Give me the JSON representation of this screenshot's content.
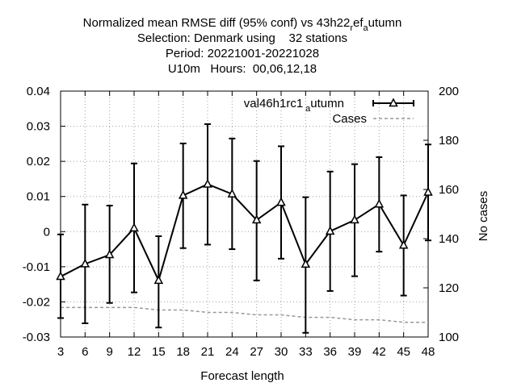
{
  "chart_data": {
    "type": "line",
    "title_lines": [
      "Normalized mean RMSE diff (95% conf) vs 43h22_ref_autumn",
      "Selection: Denmark using    32 stations",
      "Period: 20221001-20221028",
      "U10m   Hours:  00,06,12,18"
    ],
    "xlabel": "Forecast length",
    "ylabel_left": "",
    "ylabel_right": "No cases",
    "x": [
      3,
      6,
      9,
      12,
      15,
      18,
      21,
      24,
      27,
      30,
      33,
      36,
      39,
      42,
      45,
      48
    ],
    "xlim": [
      3,
      48
    ],
    "ylim": [
      -0.03,
      0.04
    ],
    "y2lim": [
      100,
      200
    ],
    "y_ticks": [
      "0.04",
      "0.03",
      "0.02",
      "0.01",
      "0",
      "-0.01",
      "-0.02",
      "-0.03"
    ],
    "y_tick_values": [
      0.04,
      0.03,
      0.02,
      0.01,
      0,
      -0.01,
      -0.02,
      -0.03
    ],
    "y2_ticks": [
      "200",
      "180",
      "160",
      "140",
      "120",
      "100"
    ],
    "y2_tick_values": [
      200,
      180,
      160,
      140,
      120,
      100
    ],
    "grid": true,
    "legend_position": "top-right",
    "series": [
      {
        "name": "val46h1rc1_autumn",
        "legend_main": "val46h1rc1",
        "legend_sub": "a",
        "legend_rest": "utumn",
        "values": [
          -0.0128,
          -0.0092,
          -0.0066,
          0.001,
          -0.0139,
          0.0103,
          0.0135,
          0.0107,
          0.0033,
          0.0083,
          -0.0093,
          0.0001,
          0.0033,
          0.0078,
          -0.0039,
          0.0112
        ],
        "err_low": [
          -0.0246,
          -0.0261,
          -0.0203,
          -0.0173,
          -0.0273,
          -0.0047,
          -0.0037,
          -0.005,
          -0.0139,
          -0.0077,
          -0.0288,
          -0.0169,
          -0.0127,
          -0.0057,
          -0.0182,
          -0.0025
        ],
        "err_high": [
          -0.0008,
          0.0077,
          0.0074,
          0.0194,
          -0.0013,
          0.0251,
          0.0306,
          0.0265,
          0.0201,
          0.0243,
          0.0098,
          0.0171,
          0.0192,
          0.0212,
          0.0103,
          0.0248
        ],
        "color": "#000000",
        "style": "solid-triangles"
      },
      {
        "name": "Cases",
        "axis": "right",
        "values": [
          112,
          112,
          112,
          112,
          111,
          111,
          110,
          110,
          109,
          109,
          108,
          108,
          107,
          107,
          106,
          106
        ],
        "color": "#999999",
        "style": "dashed"
      }
    ]
  },
  "title": {
    "line1_main": "Normalized mean RMSE diff (95% conf) vs 43h22",
    "line1_sub1": "r",
    "line1_mid": "ef",
    "line1_sub2": "a",
    "line1_end": "utumn"
  },
  "legend": {
    "cases_label": "Cases"
  }
}
